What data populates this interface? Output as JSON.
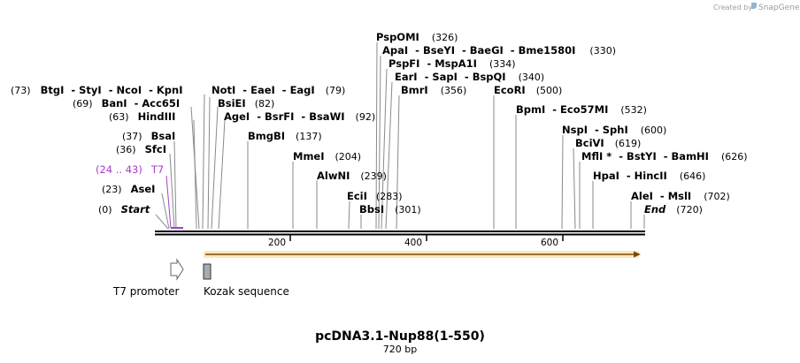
{
  "credit": {
    "prefix": "Created by",
    "brand": "SnapGene"
  },
  "map": {
    "length": 720,
    "start_label": "Start",
    "start_pos": "(0)",
    "end_label": "End",
    "end_pos": "(720)",
    "ticks": [
      "200",
      "400",
      "600"
    ]
  },
  "sites": [
    {
      "pos": "(73)",
      "names": "BtgI  - StyI  - NcoI  - KpnI",
      "bp": 73
    },
    {
      "names": "NotI  - EaeI  - EagI",
      "pos": "(79)",
      "bp": 79
    },
    {
      "pos": "(69)",
      "names": "BanI  - Acc65I",
      "bp": 69
    },
    {
      "names": "BsiEI",
      "pos": "(82)",
      "bp": 82
    },
    {
      "pos": "(63)",
      "names": "HindIII",
      "bp": 63
    },
    {
      "names": "AgeI  - BsrFI  - BsaWI",
      "pos": "(92)",
      "bp": 92
    },
    {
      "pos": "(37)",
      "names": "BsaI",
      "bp": 37
    },
    {
      "names": "BmgBI",
      "pos": "(137)",
      "bp": 137
    },
    {
      "pos": "(36)",
      "names": "SfcI",
      "bp": 36
    },
    {
      "names": "MmeI",
      "pos": "(204)",
      "bp": 204
    },
    {
      "pos": "(23)",
      "names": "AseI",
      "bp": 23
    },
    {
      "names": "AlwNI",
      "pos": "(239)",
      "bp": 239
    },
    {
      "names": "PspOMI",
      "pos": "(326)",
      "bp": 326
    },
    {
      "names": "ApaI  - BseYI  - BaeGI  - Bme1580I",
      "pos": "(330)",
      "bp": 330
    },
    {
      "names": "PspFI  - MspA1I",
      "pos": "(334)",
      "bp": 334
    },
    {
      "names": "EarI  - SapI  - BspQI",
      "pos": "(340)",
      "bp": 340
    },
    {
      "names": "BmrI",
      "pos": "(356)",
      "bp": 356
    },
    {
      "names": "EciI",
      "pos": "(283)",
      "bp": 283
    },
    {
      "names": "BbsI",
      "pos": "(301)",
      "bp": 301
    },
    {
      "names": "EcoRI",
      "pos": "(500)",
      "bp": 500
    },
    {
      "names": "BpmI  - Eco57MI",
      "pos": "(532)",
      "bp": 532
    },
    {
      "names": "NspI  - SphI",
      "pos": "(600)",
      "bp": 600
    },
    {
      "names": "BciVI",
      "pos": "(619)",
      "bp": 619
    },
    {
      "names": "MflI *  - BstYI  - BamHI",
      "pos": "(626)",
      "bp": 626
    },
    {
      "names": "HpaI  - HincII",
      "pos": "(646)",
      "bp": 646
    },
    {
      "names": "AleI  - MslI",
      "pos": "(702)",
      "bp": 702
    }
  ],
  "primer": {
    "range": "(24 .. 43)",
    "name": "T7",
    "color": "#a43fc4"
  },
  "features": [
    {
      "name": "T7 promoter"
    },
    {
      "name": "Kozak sequence"
    }
  ],
  "orf_color": "#f5c870",
  "title": "pcDNA3.1-Nup88(1-550)",
  "subtitle": "720 bp"
}
